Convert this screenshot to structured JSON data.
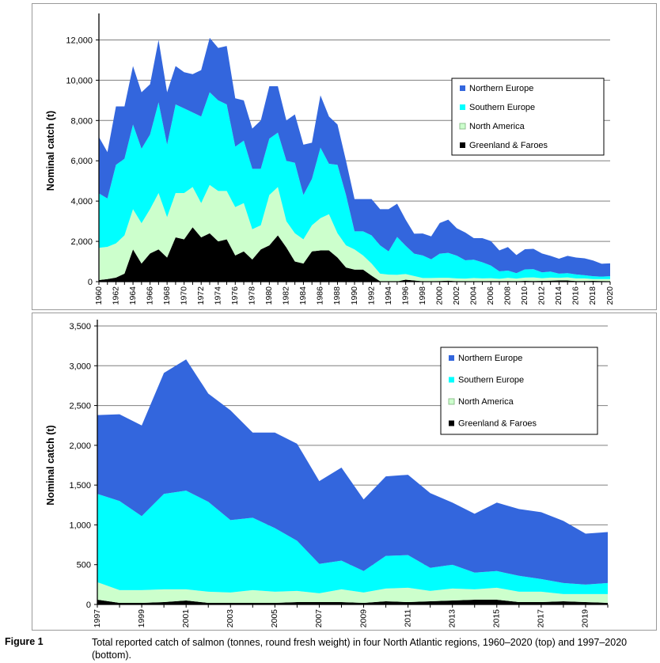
{
  "chart_data": [
    {
      "type": "area",
      "stacked": true,
      "ylabel": "Nominal catch (t)",
      "ylim": [
        0,
        13000
      ],
      "yticks": [
        0,
        2000,
        4000,
        6000,
        8000,
        10000,
        12000
      ],
      "ytick_labels": [
        "0",
        "2,000",
        "4,000",
        "6,000",
        "8,000",
        "10,000",
        "12,000"
      ],
      "grid": true,
      "legend_position": "right",
      "x": [
        1960,
        1961,
        1962,
        1963,
        1964,
        1965,
        1966,
        1967,
        1968,
        1969,
        1970,
        1971,
        1972,
        1973,
        1974,
        1975,
        1976,
        1977,
        1978,
        1979,
        1980,
        1981,
        1982,
        1983,
        1984,
        1985,
        1986,
        1987,
        1988,
        1989,
        1990,
        1991,
        1992,
        1993,
        1994,
        1995,
        1996,
        1997,
        1998,
        1999,
        2000,
        2001,
        2002,
        2003,
        2004,
        2005,
        2006,
        2007,
        2008,
        2009,
        2010,
        2011,
        2012,
        2013,
        2014,
        2015,
        2016,
        2017,
        2018,
        2019,
        2020
      ],
      "xtick_labels": [
        "1960",
        "1962",
        "1964",
        "1966",
        "1968",
        "1970",
        "1972",
        "1974",
        "1976",
        "1978",
        "1980",
        "1982",
        "1984",
        "1986",
        "1988",
        "1990",
        "1992",
        "1994",
        "1996",
        "1998",
        "2000",
        "2002",
        "2004",
        "2006",
        "2008",
        "2010",
        "2012",
        "2014",
        "2016",
        "2018",
        "2020"
      ],
      "series": [
        {
          "name": "Greenland & Faroes",
          "color": "#000000",
          "values": [
            80,
            130,
            200,
            400,
            1600,
            900,
            1400,
            1600,
            1200,
            2200,
            2100,
            2700,
            2200,
            2400,
            2000,
            2100,
            1300,
            1500,
            1100,
            1600,
            1800,
            2300,
            1700,
            1000,
            900,
            1500,
            1550,
            1550,
            1200,
            700,
            600,
            600,
            300,
            20,
            10,
            10,
            100,
            60,
            20,
            20,
            30,
            50,
            20,
            20,
            20,
            20,
            30,
            30,
            30,
            20,
            40,
            30,
            40,
            50,
            60,
            60,
            30,
            30,
            40,
            30,
            20
          ]
        },
        {
          "name": "North America",
          "color": "#ccffcc",
          "values": [
            1600,
            1600,
            1700,
            1900,
            2000,
            2000,
            2200,
            2800,
            2000,
            2200,
            2300,
            2000,
            1700,
            2400,
            2500,
            2400,
            2400,
            2400,
            1500,
            1200,
            2500,
            2400,
            1300,
            1400,
            1200,
            1300,
            1600,
            1800,
            1200,
            1100,
            1000,
            700,
            600,
            380,
            340,
            330,
            280,
            220,
            160,
            160,
            160,
            140,
            140,
            130,
            160,
            140,
            140,
            110,
            160,
            130,
            160,
            180,
            130,
            150,
            130,
            150,
            130,
            130,
            90,
            100,
            110
          ]
        },
        {
          "name": "Southern Europe",
          "color": "#00ffff",
          "values": [
            2700,
            2400,
            3900,
            3800,
            4200,
            3700,
            3700,
            4500,
            3600,
            4400,
            4200,
            3700,
            4300,
            4600,
            4500,
            4300,
            3000,
            3100,
            3000,
            2800,
            2800,
            2700,
            3000,
            3500,
            2200,
            2300,
            3500,
            2500,
            3400,
            2500,
            900,
            1200,
            1400,
            1400,
            1150,
            1880,
            1400,
            1110,
            1120,
            930,
            1200,
            1240,
            1130,
            910,
            910,
            800,
            630,
            370,
            360,
            270,
            410,
            410,
            290,
            300,
            210,
            210,
            200,
            160,
            140,
            120,
            140
          ]
        },
        {
          "name": "Northern Europe",
          "color": "#3366dd",
          "values": [
            2800,
            2300,
            2900,
            2600,
            2900,
            2800,
            2500,
            3100,
            2600,
            1900,
            1800,
            1900,
            2300,
            2700,
            2600,
            2900,
            2400,
            2000,
            2000,
            2400,
            2600,
            2300,
            2000,
            2400,
            2500,
            1800,
            2600,
            2350,
            2000,
            1700,
            1600,
            1600,
            1800,
            1800,
            2100,
            1650,
            1300,
            990,
            1090,
            1140,
            1520,
            1650,
            1360,
            1380,
            1070,
            1200,
            1220,
            1040,
            1170,
            900,
            1000,
            1010,
            940,
            780,
            740,
            860,
            840,
            840,
            780,
            640,
            640
          ]
        }
      ]
    },
    {
      "type": "area",
      "stacked": true,
      "ylabel": "Nominal catch (t)",
      "ylim": [
        0,
        3500
      ],
      "yticks": [
        0,
        500,
        1000,
        1500,
        2000,
        2500,
        3000,
        3500
      ],
      "ytick_labels": [
        "0",
        "500",
        "1,000",
        "1,500",
        "2,000",
        "2,500",
        "3,000",
        "3,500"
      ],
      "grid": true,
      "legend_position": "top-right",
      "x": [
        1997,
        1998,
        1999,
        2000,
        2001,
        2002,
        2003,
        2004,
        2005,
        2006,
        2007,
        2008,
        2009,
        2010,
        2011,
        2012,
        2013,
        2014,
        2015,
        2016,
        2017,
        2018,
        2019,
        2020
      ],
      "xtick_labels": [
        "1997",
        "1999",
        "2001",
        "2003",
        "2005",
        "2007",
        "2009",
        "2011",
        "2013",
        "2015",
        "2017",
        "2019"
      ],
      "series": [
        {
          "name": "Greenland & Faroes",
          "color": "#000000",
          "values": [
            60,
            20,
            20,
            30,
            50,
            20,
            20,
            20,
            20,
            30,
            30,
            30,
            20,
            40,
            30,
            40,
            50,
            60,
            60,
            30,
            30,
            40,
            30,
            20
          ]
        },
        {
          "name": "North America",
          "color": "#ccffcc",
          "values": [
            220,
            160,
            160,
            160,
            140,
            140,
            130,
            160,
            140,
            140,
            110,
            160,
            130,
            160,
            180,
            130,
            150,
            130,
            150,
            130,
            130,
            90,
            100,
            110
          ]
        },
        {
          "name": "Southern Europe",
          "color": "#00ffff",
          "values": [
            1110,
            1120,
            930,
            1200,
            1240,
            1130,
            910,
            910,
            800,
            630,
            370,
            360,
            270,
            410,
            410,
            290,
            300,
            210,
            210,
            200,
            160,
            140,
            120,
            140
          ]
        },
        {
          "name": "Northern Europe",
          "color": "#3366dd",
          "values": [
            990,
            1090,
            1140,
            1520,
            1650,
            1360,
            1380,
            1070,
            1200,
            1220,
            1040,
            1170,
            900,
            1000,
            1010,
            940,
            780,
            740,
            860,
            840,
            840,
            780,
            640,
            640
          ]
        }
      ]
    }
  ],
  "legend": {
    "entries": [
      "Northern Europe",
      "Southern Europe",
      "North America",
      "Greenland & Faroes"
    ],
    "colors": [
      "#3366dd",
      "#00ffff",
      "#ccffcc",
      "#000000"
    ]
  },
  "caption": {
    "label": "Figure 1",
    "text": "Total reported catch of salmon (tonnes, round fresh weight) in four North Atlantic regions, 1960–2020 (top) and 1997–2020 (bottom)."
  }
}
